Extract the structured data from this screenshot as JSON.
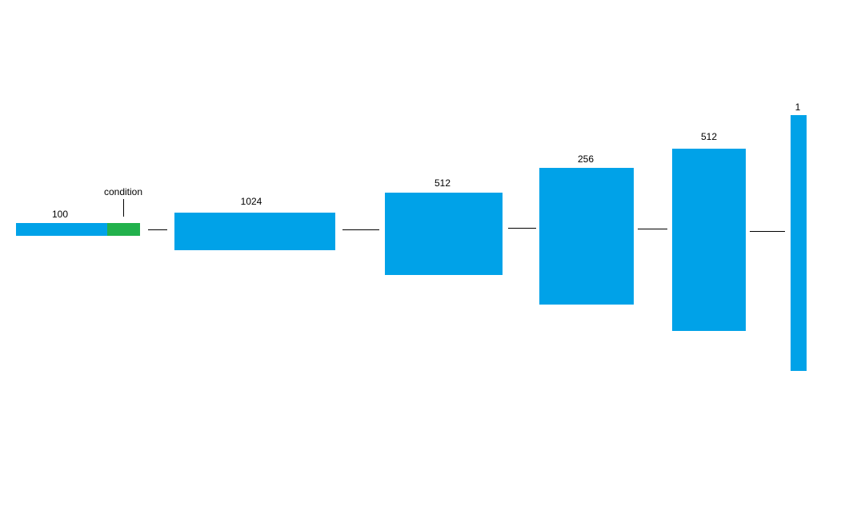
{
  "colors": {
    "layer": "#00a2e8",
    "condition": "#22b14c",
    "line": "#000000"
  },
  "input": {
    "label": "100",
    "condition_label": "condition"
  },
  "layers": [
    {
      "label": "1024"
    },
    {
      "label": "512"
    },
    {
      "label": "256"
    },
    {
      "label": "512"
    },
    {
      "label": "1"
    }
  ]
}
